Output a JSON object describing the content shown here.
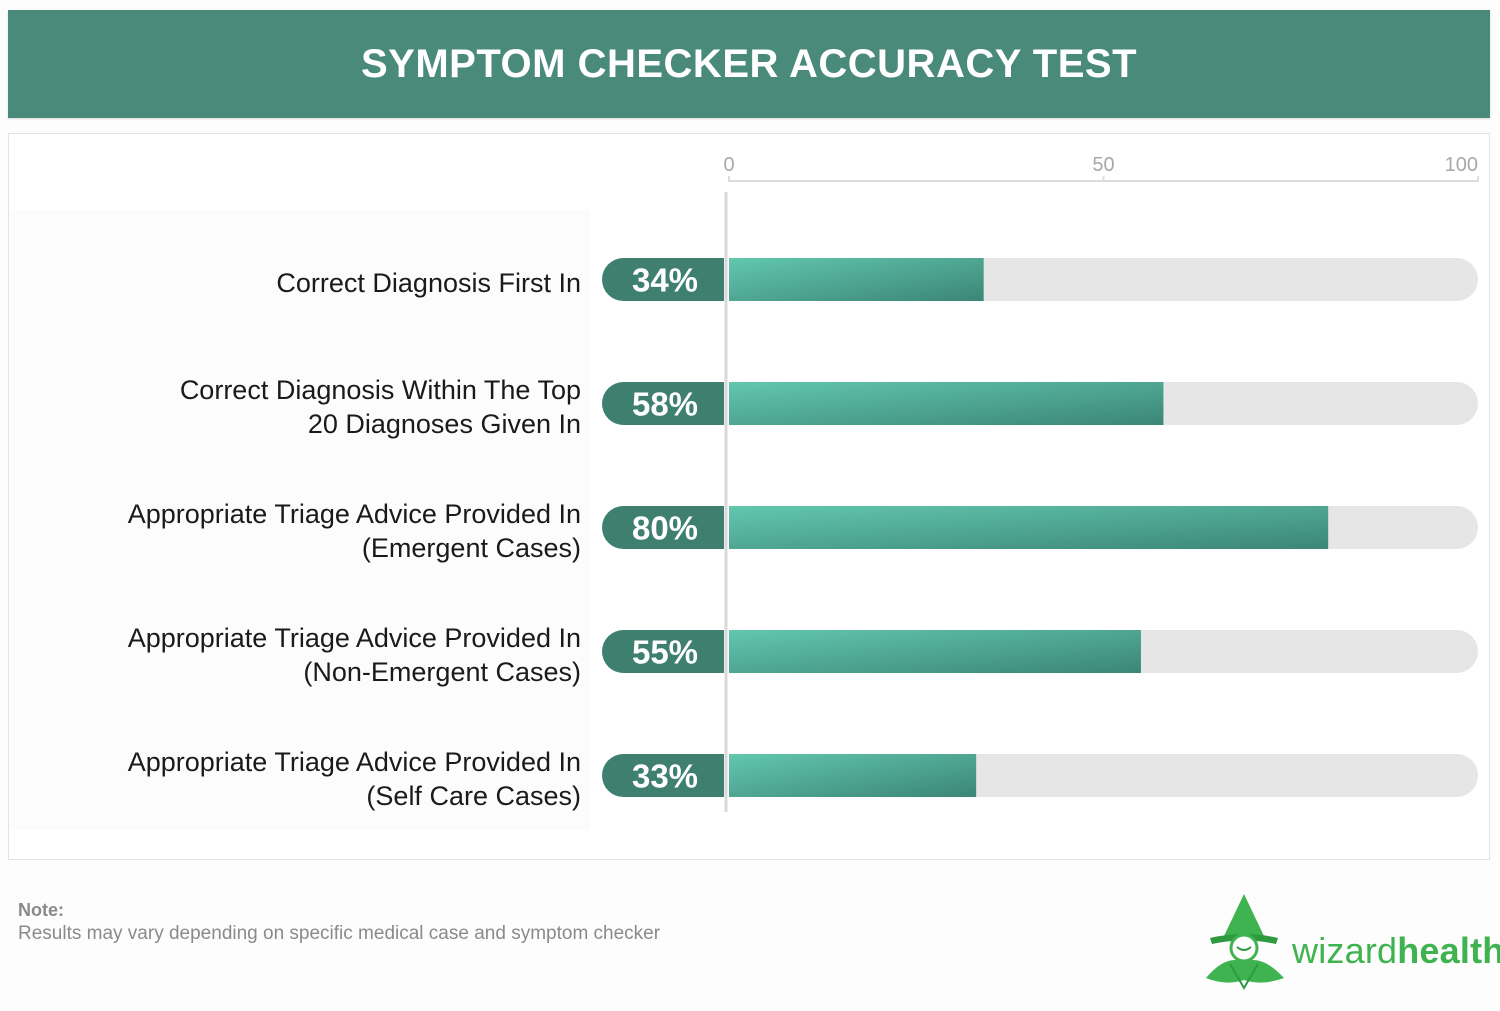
{
  "title": "SYMPTOM CHECKER ACCURACY TEST",
  "chart_data": {
    "type": "bar",
    "orientation": "horizontal",
    "categories": [
      "Correct Diagnosis First In",
      "Correct Diagnosis Within The Top 20 Diagnoses Given In",
      "Appropriate Triage Advice Provided In (Emergent Cases)",
      "Appropriate Triage Advice Provided In (Non-Emergent Cases)",
      "Appropriate Triage Advice Provided In (Self Care Cases)"
    ],
    "category_lines": [
      [
        "Correct Diagnosis First In"
      ],
      [
        "Correct Diagnosis Within The Top",
        "20 Diagnoses Given In"
      ],
      [
        "Appropriate Triage Advice Provided In",
        "(Emergent Cases)"
      ],
      [
        "Appropriate Triage Advice Provided In",
        "(Non-Emergent Cases)"
      ],
      [
        "Appropriate Triage Advice Provided In",
        "(Self Care Cases)"
      ]
    ],
    "values": [
      34,
      58,
      80,
      55,
      33
    ],
    "value_labels": [
      "34%",
      "58%",
      "80%",
      "55%",
      "33%"
    ],
    "xlim": [
      0,
      100
    ],
    "xticks": [
      0,
      50,
      100
    ],
    "xtick_labels": [
      "0",
      "50",
      "100"
    ],
    "axis_position": "top",
    "grid": false,
    "colors": {
      "bar_fill": "#5cbfa7",
      "bar_fill_dark": "#3d8a78",
      "track": "#e6e6e6",
      "value_pill": "#3f7f70",
      "header": "#4a8a7b"
    }
  },
  "note": {
    "title": "Note:",
    "text": "Results may vary depending on specific medical case and symptom checker"
  },
  "logo": {
    "prefix": "wizard",
    "suffix": "health",
    "icon": "wizard-hat-icon",
    "color": "#3fb34f"
  }
}
